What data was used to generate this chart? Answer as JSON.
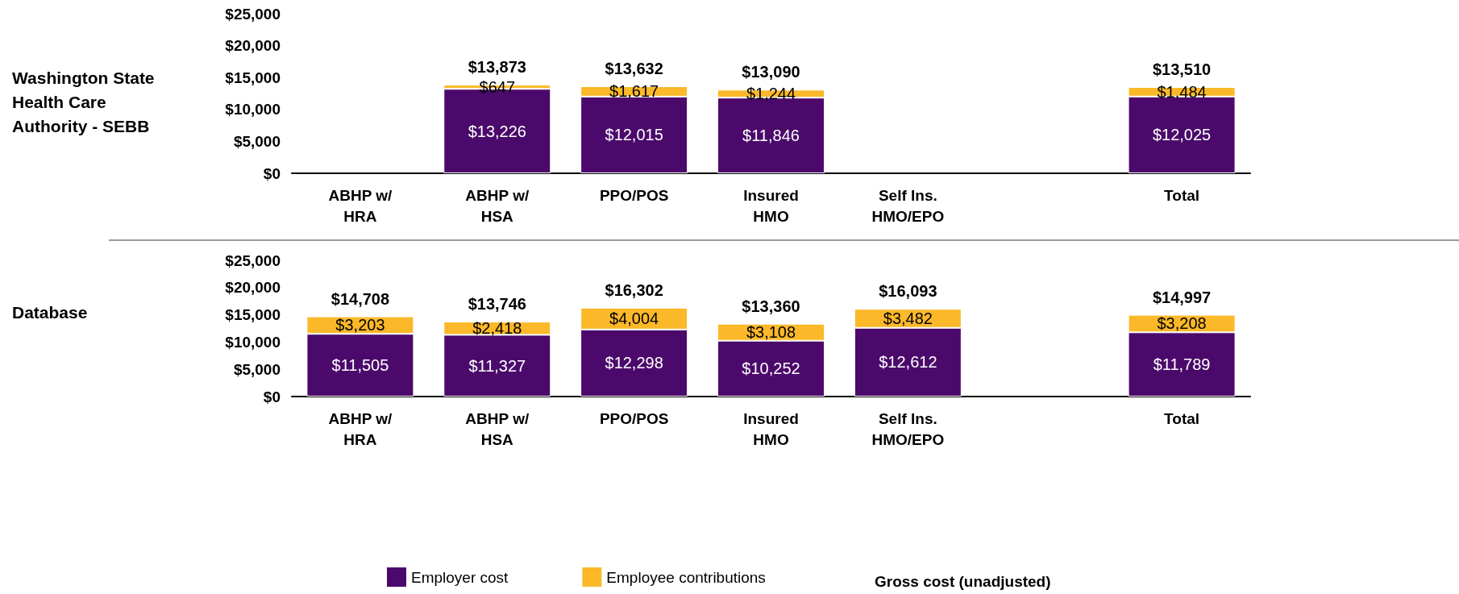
{
  "chart_data": [
    {
      "type": "bar",
      "ylabel": "Washington State\nHealth Care\nAuthority - SEBB",
      "stacked": true,
      "categories": [
        "ABHP w/\nHRA",
        "ABHP w/\nHSA",
        "PPO/POS",
        "Insured\nHMO",
        "Self Ins.\nHMO/EPO",
        null,
        "Total"
      ],
      "series": [
        {
          "color": "#4b0a6b",
          "values": [
            null,
            13226,
            12015,
            11846,
            null,
            null,
            12025
          ],
          "value_labels": [
            null,
            "$13,226",
            "$12,015",
            "$11,846",
            null,
            null,
            "$12,025"
          ]
        },
        {
          "color": "#fbb829",
          "values": [
            null,
            647,
            1617,
            1244,
            null,
            null,
            1484
          ],
          "value_labels": [
            null,
            "$647",
            "$1,617",
            "$1,244",
            null,
            null,
            "$1,484"
          ]
        }
      ],
      "totals": [
        null,
        "$13,873",
        "$13,632",
        "$13,090",
        null,
        null,
        "$13,510"
      ],
      "ylim": [
        0,
        25000
      ],
      "yticks": [
        {
          "value": 0,
          "label": "$0"
        },
        {
          "value": 5000,
          "label": "$5,000"
        },
        {
          "value": 10000,
          "label": "$10,000"
        },
        {
          "value": 15000,
          "label": "$15,000"
        },
        {
          "value": 20000,
          "label": "$20,000"
        },
        {
          "value": 25000,
          "label": "$25,000"
        }
      ],
      "grid": false,
      "legend": false
    },
    {
      "type": "bar",
      "ylabel": "Database",
      "stacked": true,
      "categories": [
        "ABHP w/\nHRA",
        "ABHP w/\nHSA",
        "PPO/POS",
        "Insured\nHMO",
        "Self Ins.\nHMO/EPO",
        null,
        "Total"
      ],
      "series": [
        {
          "name": "Employer cost",
          "color": "#4b0a6b",
          "values": [
            11505,
            11327,
            12298,
            10252,
            12612,
            null,
            11789
          ],
          "value_labels": [
            "$11,505",
            "$11,327",
            "$12,298",
            "$10,252",
            "$12,612",
            null,
            "$11,789"
          ]
        },
        {
          "name": "Employee contributions",
          "color": "#fbb829",
          "values": [
            3203,
            2418,
            4004,
            3108,
            3482,
            null,
            3208
          ],
          "value_labels": [
            "$3,203",
            "$2,418",
            "$4,004",
            "$3,108",
            "$3,482",
            null,
            "$3,208"
          ]
        }
      ],
      "totals": [
        "$14,708",
        "$13,746",
        "$16,302",
        "$13,360",
        "$16,093",
        null,
        "$14,997"
      ],
      "ylim": [
        0,
        25000
      ],
      "yticks": [
        {
          "value": 0,
          "label": "$0"
        },
        {
          "value": 5000,
          "label": "$5,000"
        },
        {
          "value": 10000,
          "label": "$10,000"
        },
        {
          "value": 15000,
          "label": "$15,000"
        },
        {
          "value": 20000,
          "label": "$20,000"
        },
        {
          "value": 25000,
          "label": "$25,000"
        }
      ],
      "grid": false,
      "legend": "bottom",
      "annotations": [
        "Gross cost (unadjusted)"
      ]
    }
  ]
}
